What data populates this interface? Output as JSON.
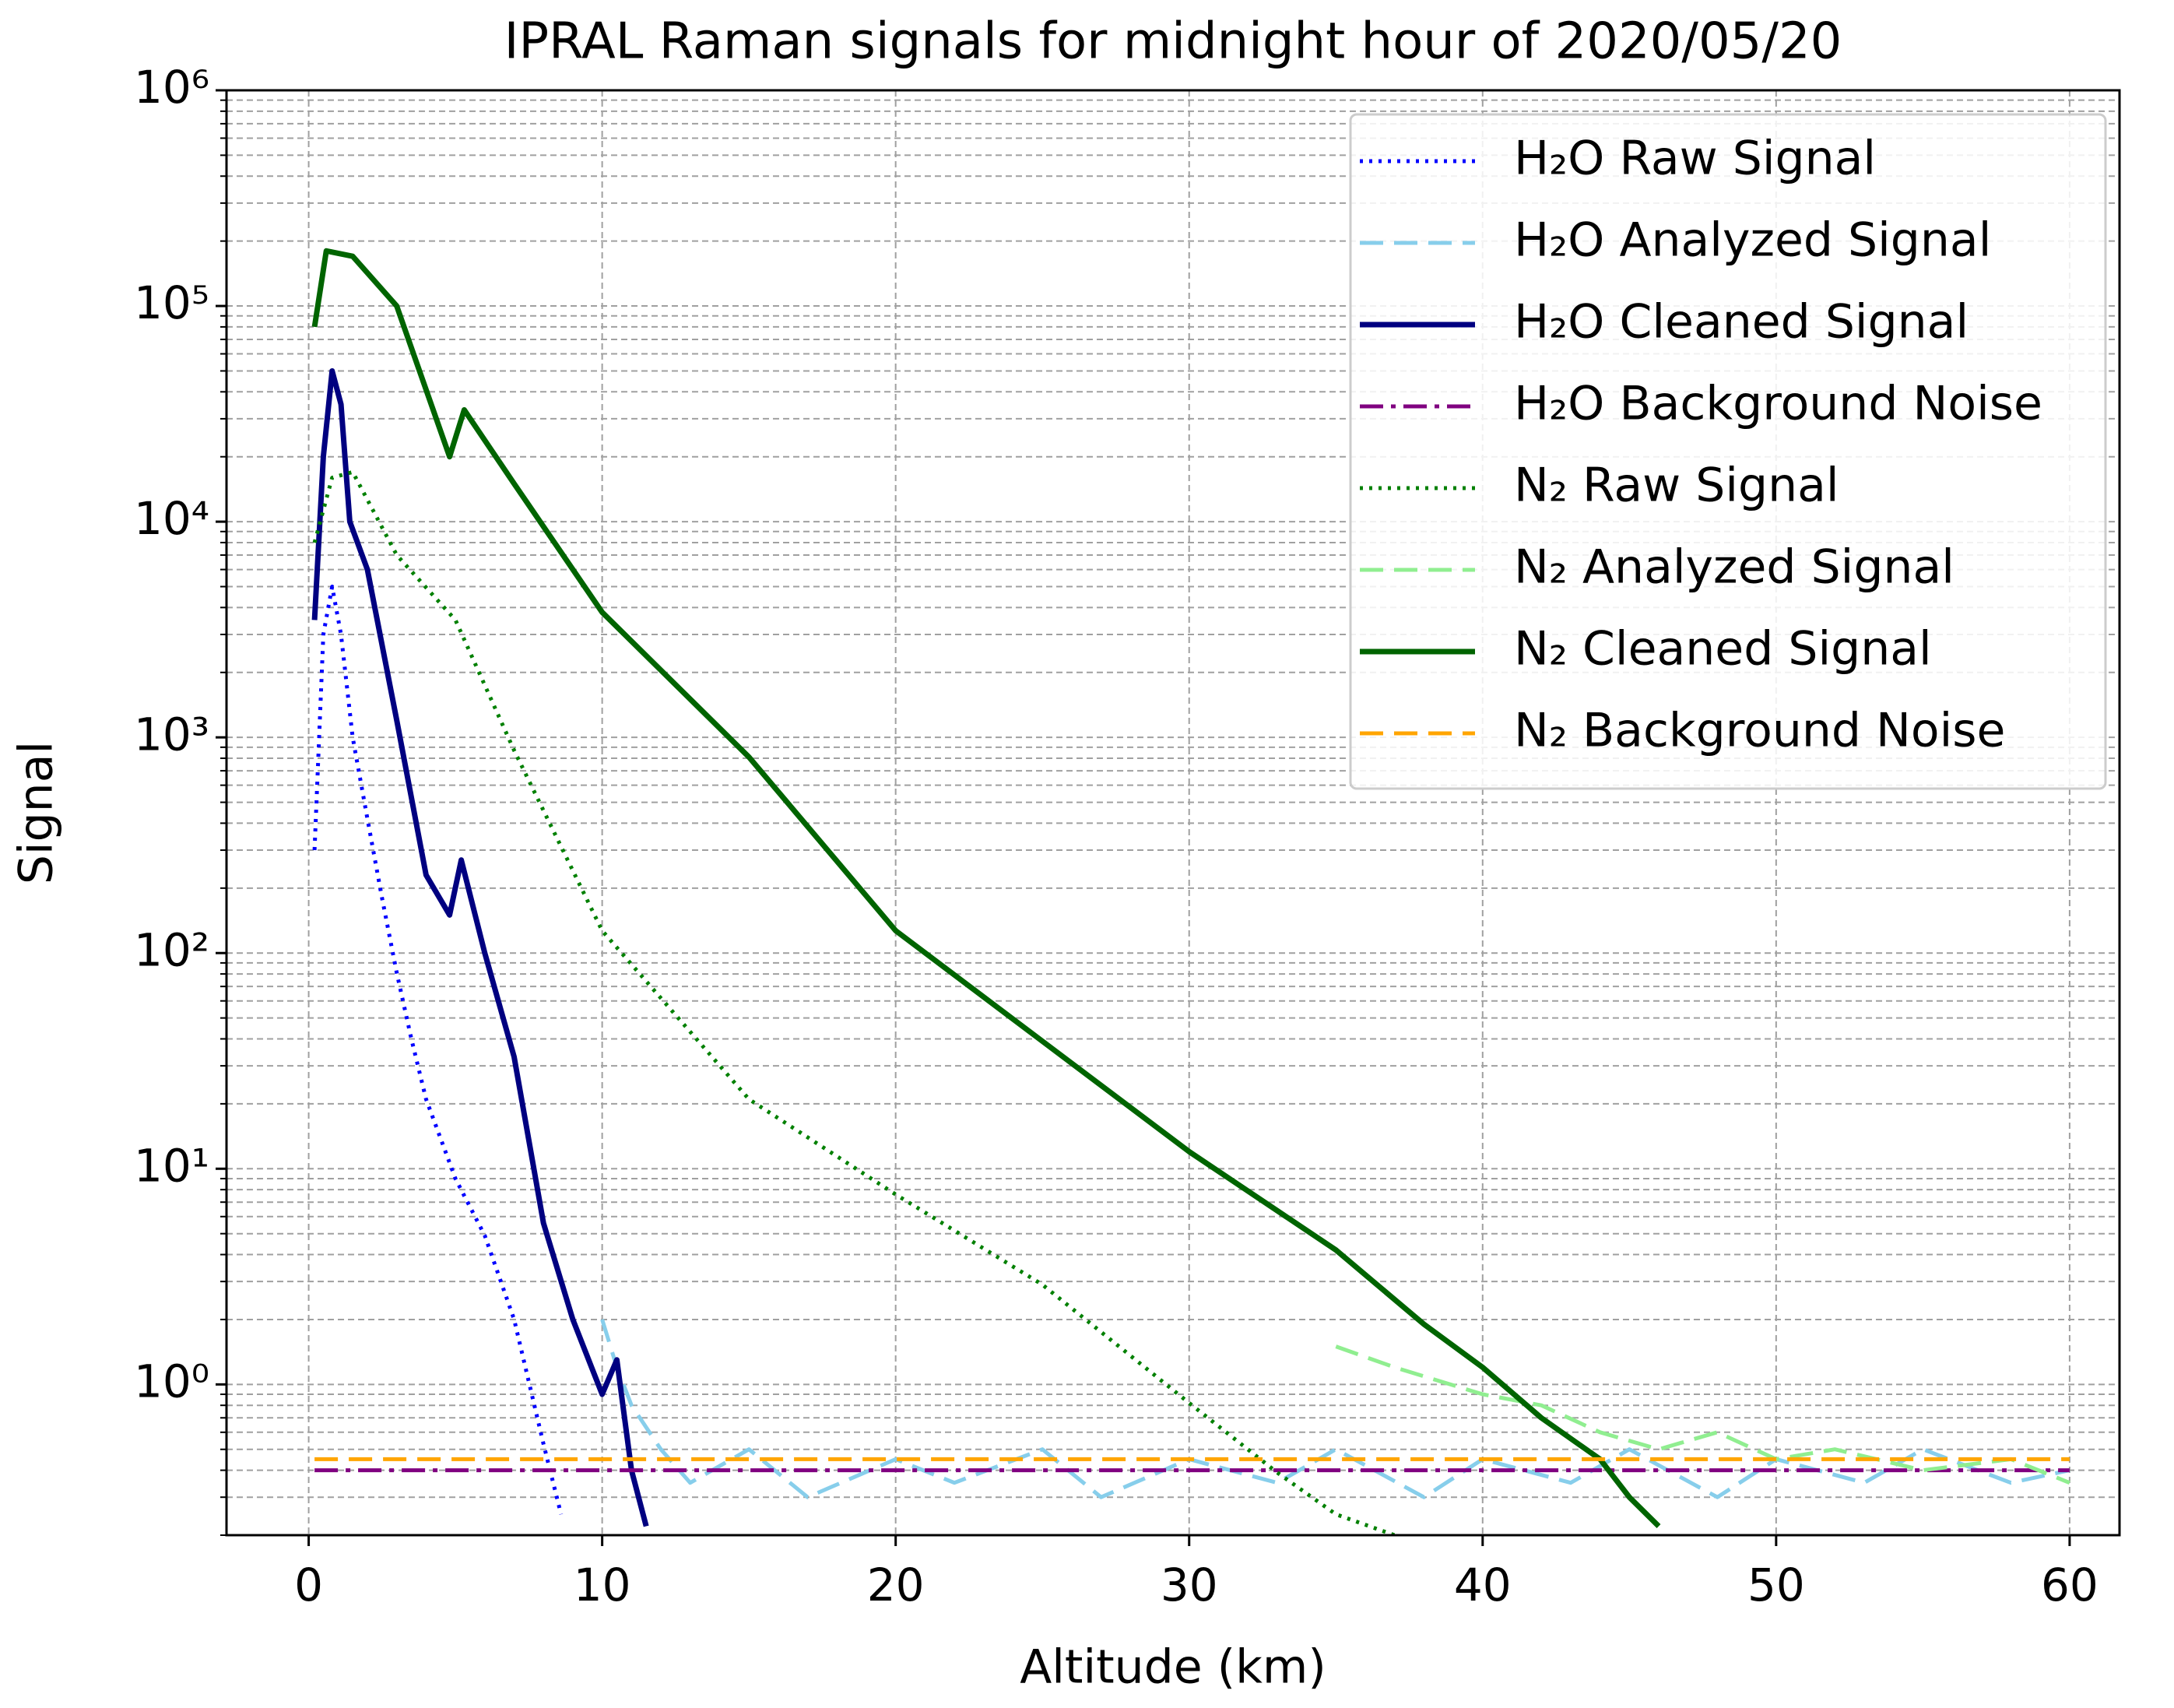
{
  "chart_data": {
    "type": "line",
    "title": "IPRAL Raman signals for midnight hour of 2020/05/20",
    "x_label": "Altitude (km)",
    "y_label": "Signal",
    "xlim": [
      -2.8,
      61.7
    ],
    "xticks": [
      0,
      10,
      20,
      30,
      40,
      50,
      60
    ],
    "ylim": [
      0.2,
      1000000
    ],
    "log_y": true,
    "grid": true,
    "legend": "upper right",
    "yticks": [
      {
        "value": 1,
        "label": "10⁰"
      },
      {
        "value": 10,
        "label": "10¹"
      },
      {
        "value": 100,
        "label": "10²"
      },
      {
        "value": 1000,
        "label": "10³"
      },
      {
        "value": 10000,
        "label": "10⁴"
      },
      {
        "value": 100000,
        "label": "10⁵"
      },
      {
        "value": 1000000,
        "label": "10⁶"
      }
    ],
    "y_minor_ticks": [
      0.2,
      0.3,
      0.4,
      0.5,
      0.6,
      0.7,
      0.8,
      0.9,
      2,
      3,
      4,
      5,
      6,
      7,
      8,
      9,
      20,
      30,
      40,
      50,
      60,
      70,
      80,
      90,
      200,
      300,
      400,
      500,
      600,
      700,
      800,
      900,
      2000,
      3000,
      4000,
      5000,
      6000,
      7000,
      8000,
      9000,
      20000,
      30000,
      40000,
      50000,
      60000,
      70000,
      80000,
      90000,
      200000,
      300000,
      400000,
      500000,
      600000,
      700000,
      800000,
      900000
    ],
    "series": [
      {
        "name": "H₂O Raw Signal",
        "color": "#0000ff",
        "dash": "dotted",
        "x": [
          0.2,
          0.5,
          0.8,
          1.1,
          1.5,
          2,
          2.5,
          3,
          3.5,
          4,
          5,
          6,
          7,
          8,
          8.6
        ],
        "values": [
          300,
          3000,
          5000,
          3000,
          1000,
          420,
          180,
          81,
          40,
          21,
          9,
          4.9,
          2,
          0.53,
          0.25
        ]
      },
      {
        "name": "H₂O Analyzed Signal",
        "color": "#87ceeb",
        "dash": "dashed",
        "x": [
          10,
          10.5,
          11,
          12,
          13,
          15,
          17,
          20,
          22,
          25,
          27,
          30,
          33,
          35,
          38,
          40,
          43,
          45,
          48,
          50,
          53,
          55,
          58,
          60
        ],
        "values": [
          2,
          1.2,
          0.8,
          0.5,
          0.35,
          0.5,
          0.3,
          0.45,
          0.35,
          0.5,
          0.3,
          0.45,
          0.35,
          0.5,
          0.3,
          0.45,
          0.35,
          0.5,
          0.3,
          0.45,
          0.35,
          0.5,
          0.35,
          0.4
        ]
      },
      {
        "name": "H₂O Cleaned Signal",
        "color": "#000080",
        "dash": "solid",
        "x": [
          0.2,
          0.5,
          0.8,
          1.1,
          1.4,
          2,
          3,
          4,
          4.8,
          5.2,
          6,
          7,
          8,
          9,
          10,
          10.5,
          11,
          11.5
        ],
        "values": [
          3500,
          20000,
          50000,
          35000,
          10000,
          6000,
          1200,
          230,
          150,
          270,
          100,
          33,
          5.6,
          2,
          0.9,
          1.3,
          0.4,
          0.22
        ]
      },
      {
        "name": "H₂O Background Noise",
        "color": "#800080",
        "dash": "dashdot",
        "x": [
          0.2,
          60
        ],
        "values": [
          0.4,
          0.4
        ]
      },
      {
        "name": "N₂ Raw Signal",
        "color": "#008000",
        "dash": "dotted",
        "x": [
          0.2,
          0.8,
          1.5,
          3,
          5,
          7,
          10,
          15,
          20,
          25,
          30,
          33,
          35,
          37
        ],
        "values": [
          8000,
          16000,
          17000,
          7000,
          3500,
          870,
          127,
          21,
          7.6,
          2.9,
          0.82,
          0.39,
          0.25,
          0.2
        ]
      },
      {
        "name": "N₂ Analyzed Signal",
        "color": "#90ee90",
        "dash": "dashed",
        "x": [
          35,
          37,
          40,
          42,
          44,
          46,
          48,
          50,
          52,
          55,
          58,
          60
        ],
        "values": [
          1.5,
          1.2,
          0.9,
          0.8,
          0.6,
          0.5,
          0.6,
          0.45,
          0.5,
          0.4,
          0.45,
          0.35
        ]
      },
      {
        "name": "N₂ Cleaned Signal",
        "color": "#006400",
        "dash": "solid",
        "x": [
          0.2,
          0.6,
          1.5,
          3,
          4.8,
          5.3,
          7,
          10,
          15,
          20,
          25,
          30,
          35,
          38,
          40,
          42,
          44,
          45,
          46
        ],
        "values": [
          80000,
          180000,
          170000,
          100000,
          20000,
          33000,
          15000,
          3800,
          810,
          127,
          39,
          12,
          4.2,
          1.9,
          1.2,
          0.7,
          0.45,
          0.3,
          0.22
        ]
      },
      {
        "name": "N₂ Background Noise",
        "color": "#ffa500",
        "dash": "dashed",
        "x": [
          0.2,
          60
        ],
        "values": [
          0.45,
          0.45
        ]
      }
    ]
  }
}
